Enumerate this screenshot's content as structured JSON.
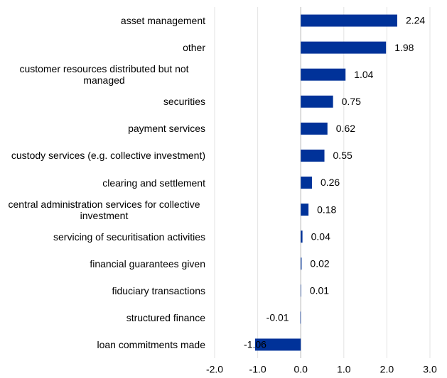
{
  "chart_data": {
    "type": "bar",
    "orientation": "horizontal",
    "categories": [
      "asset management",
      "other",
      "customer resources distributed but not managed",
      "securities",
      "payment services",
      "custody services (e.g. collective investment)",
      "clearing and settlement",
      "central administration services for collective investment",
      "servicing of securitisation activities",
      "financial guarantees given",
      "fiduciary transactions",
      "structured finance",
      "loan commitments made"
    ],
    "values": [
      2.24,
      1.98,
      1.04,
      0.75,
      0.62,
      0.55,
      0.26,
      0.18,
      0.04,
      0.02,
      0.01,
      -0.01,
      -1.06
    ],
    "color": "#003299",
    "xlim": [
      -2,
      3
    ],
    "xticks": [
      {
        "value": -2,
        "label": "-2.0"
      },
      {
        "value": -1,
        "label": "-1.0"
      },
      {
        "value": 0,
        "label": "0.0"
      },
      {
        "value": 1,
        "label": "1.0"
      },
      {
        "value": 2,
        "label": "2.0"
      },
      {
        "value": 3,
        "label": "3.0"
      }
    ],
    "grid": true
  }
}
